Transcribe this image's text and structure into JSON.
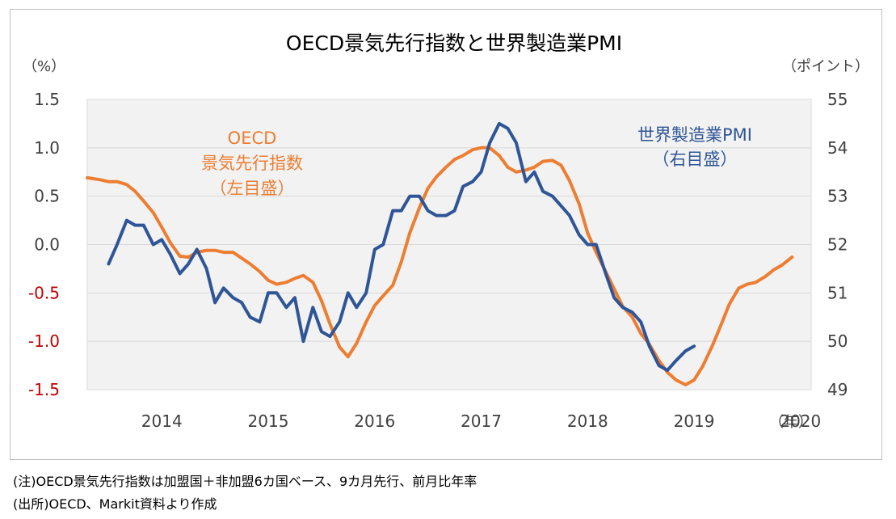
{
  "chart_data": {
    "type": "line",
    "title": "OECD景気先行指数と世界製造業PMI",
    "y_left": {
      "unit_label": "（%）",
      "ylim": [
        -1.5,
        1.5
      ],
      "ticks": [
        "1.5",
        "1.0",
        "0.5",
        "0.0",
        "-0.5",
        "-1.0",
        "-1.5"
      ],
      "negative_tick_color": "#c00000"
    },
    "y_right": {
      "unit_label": "（ポイント）",
      "ylim": [
        49,
        55
      ],
      "ticks": [
        "55",
        "54",
        "53",
        "52",
        "51",
        "50",
        "49"
      ]
    },
    "x_axis": {
      "unit_label": "（年）",
      "ticks": [
        "2014",
        "2015",
        "2016",
        "2017",
        "2018",
        "2019",
        "2020"
      ],
      "xlim": [
        2013.8,
        2020.6
      ]
    },
    "grid": true,
    "plot_background": "#f2f2f2",
    "series": [
      {
        "name_lines": [
          "OECD",
          "景気先行指数",
          "（左目盛）"
        ],
        "axis": "left",
        "color": "#ed7d31",
        "points": [
          [
            2013.8,
            0.69
          ],
          [
            2013.92,
            0.67
          ],
          [
            2014.0,
            0.65
          ],
          [
            2014.08,
            0.65
          ],
          [
            2014.17,
            0.62
          ],
          [
            2014.25,
            0.55
          ],
          [
            2014.33,
            0.45
          ],
          [
            2014.42,
            0.33
          ],
          [
            2014.5,
            0.18
          ],
          [
            2014.58,
            0.02
          ],
          [
            2014.67,
            -0.12
          ],
          [
            2014.75,
            -0.13
          ],
          [
            2014.83,
            -0.08
          ],
          [
            2014.92,
            -0.06
          ],
          [
            2015.0,
            -0.06
          ],
          [
            2015.08,
            -0.08
          ],
          [
            2015.17,
            -0.08
          ],
          [
            2015.25,
            -0.14
          ],
          [
            2015.33,
            -0.2
          ],
          [
            2015.42,
            -0.28
          ],
          [
            2015.5,
            -0.37
          ],
          [
            2015.58,
            -0.41
          ],
          [
            2015.67,
            -0.39
          ],
          [
            2015.75,
            -0.35
          ],
          [
            2015.83,
            -0.32
          ],
          [
            2015.92,
            -0.39
          ],
          [
            2016.0,
            -0.58
          ],
          [
            2016.08,
            -0.82
          ],
          [
            2016.17,
            -1.06
          ],
          [
            2016.25,
            -1.16
          ],
          [
            2016.33,
            -1.02
          ],
          [
            2016.42,
            -0.8
          ],
          [
            2016.5,
            -0.63
          ],
          [
            2016.58,
            -0.53
          ],
          [
            2016.67,
            -0.42
          ],
          [
            2016.75,
            -0.18
          ],
          [
            2016.83,
            0.12
          ],
          [
            2016.92,
            0.38
          ],
          [
            2017.0,
            0.58
          ],
          [
            2017.08,
            0.7
          ],
          [
            2017.17,
            0.8
          ],
          [
            2017.25,
            0.88
          ],
          [
            2017.33,
            0.92
          ],
          [
            2017.42,
            0.98
          ],
          [
            2017.5,
            1.0
          ],
          [
            2017.58,
            1.0
          ],
          [
            2017.67,
            0.92
          ],
          [
            2017.75,
            0.8
          ],
          [
            2017.83,
            0.75
          ],
          [
            2017.92,
            0.77
          ],
          [
            2018.0,
            0.8
          ],
          [
            2018.08,
            0.86
          ],
          [
            2018.17,
            0.87
          ],
          [
            2018.25,
            0.82
          ],
          [
            2018.33,
            0.66
          ],
          [
            2018.42,
            0.42
          ],
          [
            2018.5,
            0.12
          ],
          [
            2018.58,
            -0.08
          ],
          [
            2018.67,
            -0.28
          ],
          [
            2018.75,
            -0.46
          ],
          [
            2018.83,
            -0.64
          ],
          [
            2018.92,
            -0.75
          ],
          [
            2019.0,
            -0.92
          ],
          [
            2019.08,
            -1.03
          ],
          [
            2019.17,
            -1.2
          ],
          [
            2019.25,
            -1.32
          ],
          [
            2019.33,
            -1.4
          ],
          [
            2019.42,
            -1.45
          ],
          [
            2019.5,
            -1.4
          ],
          [
            2019.58,
            -1.26
          ],
          [
            2019.67,
            -1.05
          ],
          [
            2019.75,
            -0.84
          ],
          [
            2019.83,
            -0.62
          ],
          [
            2019.92,
            -0.45
          ],
          [
            2020.0,
            -0.41
          ],
          [
            2020.08,
            -0.39
          ],
          [
            2020.17,
            -0.33
          ],
          [
            2020.25,
            -0.26
          ],
          [
            2020.33,
            -0.21
          ],
          [
            2020.42,
            -0.13
          ]
        ]
      },
      {
        "name_lines": [
          "世界製造業PMI",
          "（右目盛）"
        ],
        "axis": "right",
        "color": "#2f5597",
        "points": [
          [
            2014.0,
            51.6
          ],
          [
            2014.08,
            52.0
          ],
          [
            2014.17,
            52.5
          ],
          [
            2014.25,
            52.4
          ],
          [
            2014.33,
            52.4
          ],
          [
            2014.42,
            52.0
          ],
          [
            2014.5,
            52.1
          ],
          [
            2014.58,
            51.8
          ],
          [
            2014.67,
            51.4
          ],
          [
            2014.75,
            51.6
          ],
          [
            2014.83,
            51.9
          ],
          [
            2014.92,
            51.5
          ],
          [
            2015.0,
            50.8
          ],
          [
            2015.08,
            51.1
          ],
          [
            2015.17,
            50.9
          ],
          [
            2015.25,
            50.8
          ],
          [
            2015.33,
            50.5
          ],
          [
            2015.42,
            50.4
          ],
          [
            2015.5,
            51.0
          ],
          [
            2015.58,
            51.0
          ],
          [
            2015.67,
            50.7
          ],
          [
            2015.75,
            50.9
          ],
          [
            2015.83,
            50.0
          ],
          [
            2015.92,
            50.7
          ],
          [
            2016.0,
            50.2
          ],
          [
            2016.08,
            50.1
          ],
          [
            2016.17,
            50.4
          ],
          [
            2016.25,
            51.0
          ],
          [
            2016.33,
            50.7
          ],
          [
            2016.42,
            51.0
          ],
          [
            2016.5,
            51.9
          ],
          [
            2016.58,
            52.0
          ],
          [
            2016.67,
            52.7
          ],
          [
            2016.75,
            52.7
          ],
          [
            2016.83,
            53.0
          ],
          [
            2016.92,
            53.0
          ],
          [
            2017.0,
            52.7
          ],
          [
            2017.08,
            52.6
          ],
          [
            2017.17,
            52.6
          ],
          [
            2017.25,
            52.7
          ],
          [
            2017.33,
            53.2
          ],
          [
            2017.42,
            53.3
          ],
          [
            2017.5,
            53.5
          ],
          [
            2017.58,
            54.1
          ],
          [
            2017.67,
            54.5
          ],
          [
            2017.75,
            54.4
          ],
          [
            2017.83,
            54.1
          ],
          [
            2017.92,
            53.3
          ],
          [
            2018.0,
            53.5
          ],
          [
            2018.08,
            53.1
          ],
          [
            2018.17,
            53.0
          ],
          [
            2018.25,
            52.8
          ],
          [
            2018.33,
            52.6
          ],
          [
            2018.42,
            52.2
          ],
          [
            2018.5,
            52.0
          ],
          [
            2018.58,
            52.0
          ],
          [
            2018.67,
            51.4
          ],
          [
            2018.75,
            50.9
          ],
          [
            2018.83,
            50.7
          ],
          [
            2018.92,
            50.6
          ],
          [
            2019.0,
            50.4
          ],
          [
            2019.08,
            49.9
          ],
          [
            2019.17,
            49.5
          ],
          [
            2019.25,
            49.4
          ],
          [
            2019.33,
            49.6
          ],
          [
            2019.42,
            49.8
          ],
          [
            2019.5,
            49.9
          ]
        ]
      }
    ]
  },
  "notes": [
    "(注)OECD景気先行指数は加盟国＋非加盟6カ国ベース、9カ月先行、前月比年率",
    "(出所)OECD、Markit資料より作成"
  ]
}
